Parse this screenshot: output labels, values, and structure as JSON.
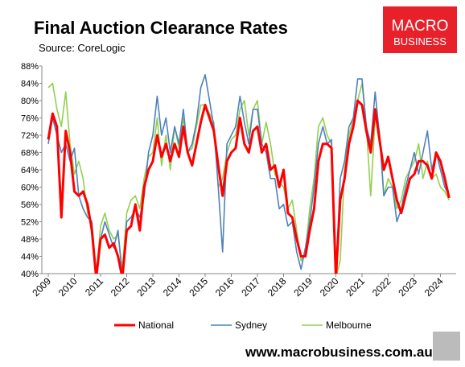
{
  "chart_data": {
    "type": "line",
    "title": "Final Auction Clearance Rates",
    "subtitle": "Source: CoreLogic",
    "logo": {
      "line1": "MACRO",
      "line2": "BUSINESS"
    },
    "footer": "www.macrobusiness.com.au",
    "categories": [
      "2009",
      null,
      null,
      null,
      null,
      null,
      "2010",
      null,
      null,
      null,
      null,
      null,
      "2011",
      null,
      null,
      null,
      null,
      null,
      "2012",
      null,
      null,
      null,
      null,
      null,
      "2013",
      null,
      null,
      null,
      null,
      null,
      "2014",
      null,
      null,
      null,
      null,
      null,
      "2015",
      null,
      null,
      null,
      null,
      null,
      "2016",
      null,
      null,
      null,
      null,
      null,
      "2017",
      null,
      null,
      null,
      null,
      null,
      "2018",
      null,
      null,
      null,
      null,
      null,
      "2019",
      null,
      null,
      null,
      null,
      null,
      "2020",
      null,
      null,
      null,
      null,
      null,
      "2021",
      null,
      null,
      null,
      null,
      null,
      "2022",
      null,
      null,
      null,
      null,
      null,
      "2023",
      null,
      null,
      null,
      null,
      null,
      "2024",
      null,
      null
    ],
    "ylim": [
      40,
      88
    ],
    "yticks": [
      {
        "value": 40,
        "label": "40%"
      },
      {
        "value": 44,
        "label": "44%"
      },
      {
        "value": 48,
        "label": "48%"
      },
      {
        "value": 52,
        "label": "52%"
      },
      {
        "value": 56,
        "label": "56%"
      },
      {
        "value": 60,
        "label": "60%"
      },
      {
        "value": 64,
        "label": "64%"
      },
      {
        "value": 68,
        "label": "68%"
      },
      {
        "value": 72,
        "label": "72%"
      },
      {
        "value": 76,
        "label": "76%"
      },
      {
        "value": 80,
        "label": "80%"
      },
      {
        "value": 84,
        "label": "84%"
      },
      {
        "value": 88,
        "label": "88%"
      }
    ],
    "series": [
      {
        "name": "National",
        "color": "#ff0000",
        "width": 3,
        "values": [
          71,
          77,
          74,
          53,
          73,
          68,
          59,
          58,
          59,
          56,
          50,
          39,
          48,
          49,
          46,
          47,
          44,
          39,
          50,
          51,
          56,
          50,
          60,
          64,
          66,
          72,
          67,
          70,
          66,
          70,
          67,
          74,
          68,
          65,
          70,
          75,
          79,
          76,
          73,
          65,
          58,
          66,
          68,
          69,
          76,
          70,
          68,
          73,
          74,
          68,
          70,
          64,
          65,
          60,
          64,
          54,
          53,
          48,
          44,
          44,
          50,
          55,
          66,
          70,
          70,
          69,
          39,
          57,
          62,
          70,
          74,
          80,
          79,
          73,
          68,
          78,
          71,
          64,
          67,
          62,
          57,
          54,
          58,
          62,
          63,
          66,
          66,
          65,
          62,
          68,
          66,
          62,
          57.5
        ]
      },
      {
        "name": "Sydney",
        "color": "#4f81bd",
        "width": 1.6,
        "values": [
          70,
          76,
          72,
          68,
          70,
          66,
          69,
          58,
          55,
          53,
          52,
          39,
          48,
          52,
          49,
          46,
          50,
          39,
          52,
          53,
          55,
          53,
          58,
          68,
          72,
          81,
          72,
          76,
          68,
          74,
          70,
          78,
          68,
          70,
          75,
          83,
          86,
          80,
          74,
          60,
          45,
          70,
          72,
          74,
          81,
          75,
          70,
          78,
          78,
          70,
          68,
          62,
          62,
          55,
          56,
          51,
          52,
          45,
          41,
          46,
          52,
          60,
          70,
          74,
          70,
          71,
          39,
          62,
          66,
          74,
          76,
          85,
          85,
          74,
          70,
          82,
          72,
          58,
          60,
          60,
          52,
          55,
          60,
          64,
          68,
          63,
          68,
          73,
          64,
          68,
          64,
          60,
          58
        ]
      },
      {
        "name": "Melbourne",
        "color": "#92d050",
        "width": 1.6,
        "values": [
          83,
          84,
          78,
          74,
          82,
          70,
          63,
          66,
          62,
          54,
          52,
          40,
          51,
          54,
          50,
          48,
          49,
          41,
          54,
          57,
          58,
          55,
          62,
          67,
          68,
          76,
          65,
          72,
          64,
          74,
          69,
          76,
          68,
          69,
          74,
          79,
          79,
          77,
          75,
          60,
          62,
          68,
          71,
          72,
          78,
          80,
          72,
          78,
          80,
          70,
          75,
          70,
          63,
          61,
          60,
          55,
          57,
          50,
          43,
          45,
          55,
          62,
          74,
          76,
          72,
          70,
          39,
          43,
          64,
          72,
          76,
          80,
          84,
          74,
          58,
          76,
          73,
          58,
          62,
          60,
          55,
          57,
          62,
          64,
          66,
          70,
          62,
          66,
          62,
          63,
          60,
          59,
          57
        ]
      }
    ]
  }
}
